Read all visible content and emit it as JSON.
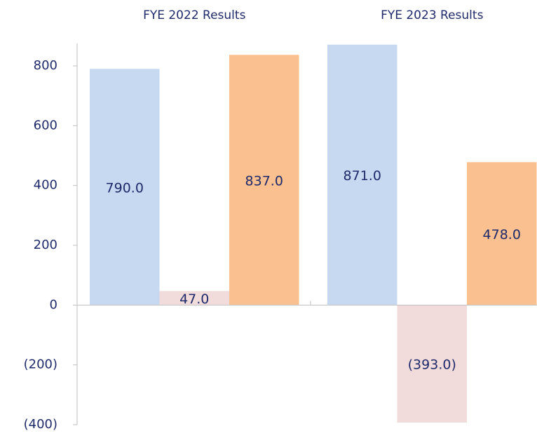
{
  "chart_data": {
    "type": "grouped-bar",
    "categories": [
      "FYE 2022 Results",
      "FYE 2023 Results"
    ],
    "series": [
      {
        "color": "#c6d9f1",
        "values": [
          790,
          871
        ],
        "value_labels": [
          "790.0",
          "871.0"
        ]
      },
      {
        "color": "#f2dcdb",
        "values": [
          47,
          -393
        ],
        "value_labels": [
          "47.0",
          "(393.0)"
        ]
      },
      {
        "color": "#fac090",
        "values": [
          837,
          478
        ],
        "value_labels": [
          "837.0",
          "478.0"
        ]
      }
    ],
    "ylim": [
      -400,
      875
    ],
    "yticks": [
      {
        "value": -400,
        "label": "(400)"
      },
      {
        "value": -200,
        "label": "(200)"
      },
      0,
      200,
      400,
      600,
      800
    ]
  }
}
